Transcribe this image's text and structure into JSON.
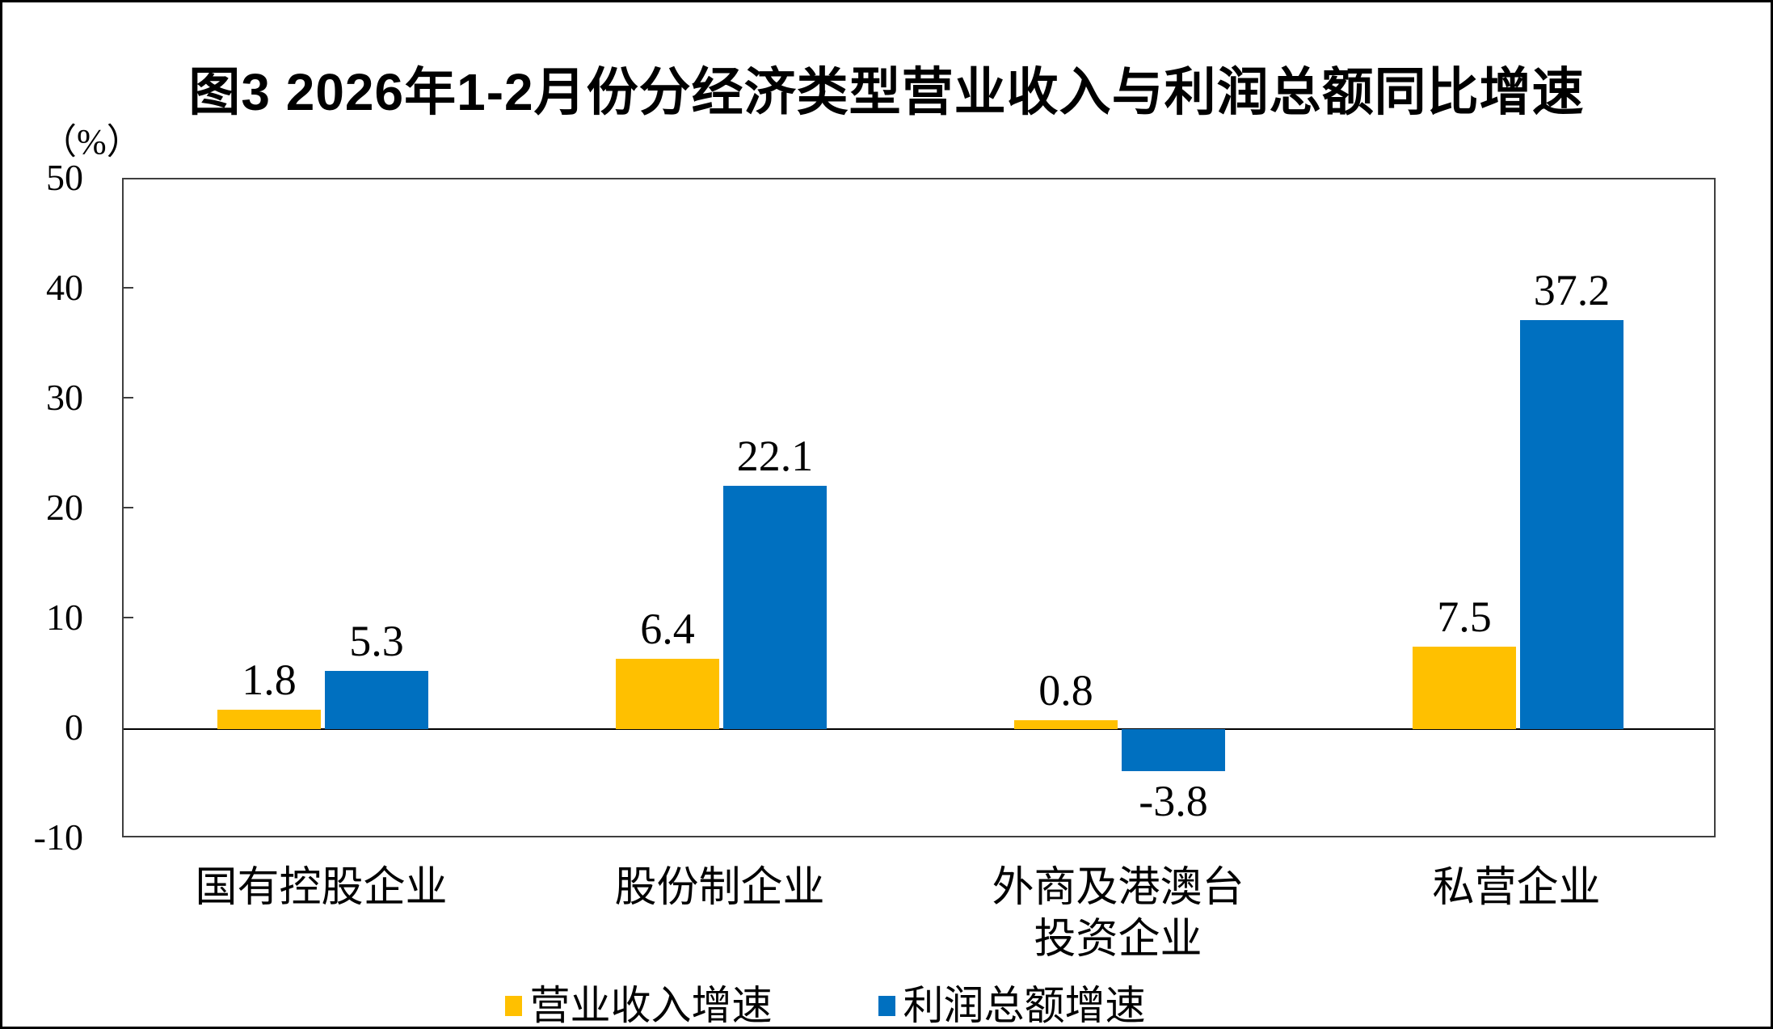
{
  "title": "图3 2026年1-2月份分经济类型营业收入与利润总额同比增速",
  "y_axis_unit": "（%）",
  "chart_data": {
    "type": "bar",
    "title": "图3 2026年1-2月份分经济类型营业收入与利润总额同比增速",
    "categories": [
      "国有控股企业",
      "股份制企业",
      "外商及港澳台\n投资企业",
      "私营企业"
    ],
    "series": [
      {
        "name": "营业收入增速",
        "color": "#FFC000",
        "values": [
          1.8,
          6.4,
          0.8,
          7.5
        ]
      },
      {
        "name": "利润总额增速",
        "color": "#0070C0",
        "values": [
          5.3,
          22.1,
          -3.8,
          37.2
        ]
      }
    ],
    "data_labels": [
      "1.8",
      "6.4",
      "0.8",
      "7.5",
      "5.3",
      "22.1",
      "-3.8",
      "37.2"
    ],
    "ylabel": "（%）",
    "ylim": [
      -10,
      50
    ],
    "yticks": [
      50,
      40,
      30,
      20,
      10,
      0,
      -10
    ],
    "grid": false,
    "legend_position": "bottom"
  }
}
